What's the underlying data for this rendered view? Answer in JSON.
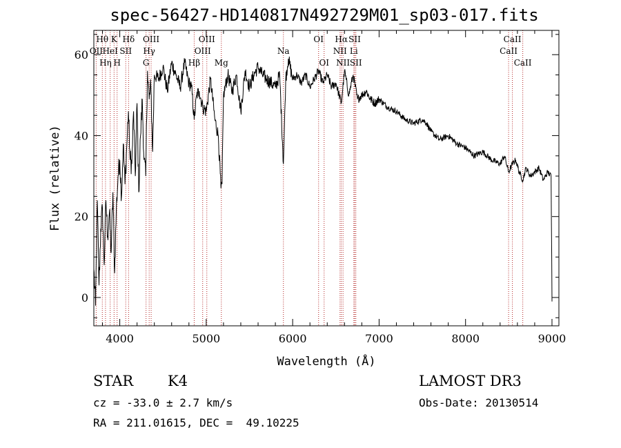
{
  "title": "spec-56427-HD140817N492729M01_sp03-017.fits",
  "chart_data": {
    "type": "line",
    "title": "spec-56427-HD140817N492729M01_sp03-017.fits",
    "xlabel": "Wavelength (Å)",
    "ylabel": "Flux (relative)",
    "xlim": [
      3700,
      9080
    ],
    "ylim": [
      -7,
      66
    ],
    "xticks": [
      4000,
      5000,
      6000,
      7000,
      8000,
      9000
    ],
    "yticks": [
      0,
      20,
      40,
      60
    ],
    "series": [
      {
        "name": "spectrum",
        "x": [
          3700,
          3720,
          3740,
          3760,
          3780,
          3800,
          3820,
          3840,
          3860,
          3880,
          3900,
          3920,
          3940,
          3960,
          3980,
          4000,
          4020,
          4040,
          4060,
          4080,
          4100,
          4120,
          4140,
          4160,
          4180,
          4200,
          4220,
          4240,
          4260,
          4280,
          4300,
          4320,
          4340,
          4360,
          4380,
          4400,
          4450,
          4500,
          4550,
          4600,
          4650,
          4700,
          4750,
          4800,
          4830,
          4861,
          4890,
          4920,
          4960,
          5000,
          5050,
          5100,
          5140,
          5170,
          5183,
          5200,
          5250,
          5300,
          5350,
          5400,
          5450,
          5500,
          5550,
          5600,
          5650,
          5700,
          5750,
          5800,
          5850,
          5893,
          5920,
          5950,
          6000,
          6050,
          6100,
          6150,
          6200,
          6250,
          6300,
          6350,
          6400,
          6450,
          6500,
          6563,
          6600,
          6650,
          6700,
          6750,
          6800,
          6850,
          6900,
          6950,
          7000,
          7100,
          7200,
          7300,
          7400,
          7500,
          7550,
          7600,
          7700,
          7800,
          7900,
          8000,
          8100,
          8200,
          8300,
          8400,
          8450,
          8498,
          8542,
          8580,
          8620,
          8662,
          8700,
          8750,
          8800,
          8850,
          8900,
          8950,
          8990,
          9000
        ],
        "values": [
          7,
          -2,
          24,
          3,
          17,
          22,
          8,
          24,
          15,
          21,
          11,
          26,
          6,
          22,
          30,
          34,
          25,
          38,
          28,
          37,
          46,
          34,
          33,
          46,
          30,
          48,
          26,
          40,
          49,
          34,
          30,
          56,
          49,
          52,
          36,
          55,
          54,
          57,
          51,
          58,
          55,
          52,
          58,
          53,
          52,
          44,
          50,
          51,
          47,
          46,
          54,
          44,
          40,
          27,
          28,
          50,
          55,
          51,
          55,
          46,
          56,
          52,
          55,
          57,
          55,
          54,
          53,
          52,
          55,
          33,
          54,
          59,
          54,
          55,
          53,
          55,
          52,
          54,
          56,
          53,
          55,
          52,
          53,
          48,
          56,
          50,
          55,
          49,
          50,
          51,
          49,
          48,
          49,
          47,
          46,
          44,
          43,
          44,
          43,
          41,
          39,
          40,
          38,
          37,
          35,
          36,
          34,
          33,
          35,
          31,
          33,
          34,
          31,
          29,
          32,
          30,
          31,
          32,
          29,
          31,
          30,
          -1
        ]
      }
    ],
    "spectral_lines": [
      {
        "name": "Hθ",
        "wavelength": 3798,
        "level": 1
      },
      {
        "name": "OII",
        "wavelength": 3727,
        "level": 2
      },
      {
        "name": "Hη",
        "wavelength": 3835,
        "level": 3
      },
      {
        "name": "K",
        "wavelength": 3934,
        "level": 1
      },
      {
        "name": "HeI",
        "wavelength": 3889,
        "level": 2
      },
      {
        "name": "H",
        "wavelength": 3969,
        "level": 3
      },
      {
        "name": "Hδ",
        "wavelength": 4102,
        "level": 1
      },
      {
        "name": "SII",
        "wavelength": 4069,
        "level": 2
      },
      {
        "name": "OIII",
        "wavelength": 4363,
        "level": 1
      },
      {
        "name": "Hγ",
        "wavelength": 4340,
        "level": 2
      },
      {
        "name": "G",
        "wavelength": 4304,
        "level": 3
      },
      {
        "name": "Hβ",
        "wavelength": 4861,
        "level": 3
      },
      {
        "name": "OIII",
        "wavelength": 5007,
        "level": 1
      },
      {
        "name": "OIII",
        "wavelength": 4959,
        "level": 2
      },
      {
        "name": "Mg",
        "wavelength": 5175,
        "level": 3
      },
      {
        "name": "Na",
        "wavelength": 5893,
        "level": 2
      },
      {
        "name": "OI",
        "wavelength": 6300,
        "level": 1
      },
      {
        "name": "OI",
        "wavelength": 6364,
        "level": 3
      },
      {
        "name": "Hα",
        "wavelength": 6563,
        "level": 1
      },
      {
        "name": "NII",
        "wavelength": 6548,
        "level": 2
      },
      {
        "name": "NII",
        "wavelength": 6583,
        "level": 3
      },
      {
        "name": "SII",
        "wavelength": 6717,
        "level": 1
      },
      {
        "name": "Li",
        "wavelength": 6708,
        "level": 2
      },
      {
        "name": "SII",
        "wavelength": 6731,
        "level": 3
      },
      {
        "name": "CaII",
        "wavelength": 8542,
        "level": 1
      },
      {
        "name": "CaII",
        "wavelength": 8498,
        "level": 2
      },
      {
        "name": "CaII",
        "wavelength": 8662,
        "level": 3
      }
    ]
  },
  "info": {
    "class": "STAR",
    "subclass": "K4",
    "survey": "LAMOST DR3",
    "cz": "cz = -33.0 ± 2.7 km/s",
    "obs_date": "Obs-Date: 20130514",
    "coords": "RA = 211.01615, DEC =  49.10225"
  },
  "colors": {
    "line": "#000000",
    "marker": "#b22222",
    "axis": "#000000"
  }
}
